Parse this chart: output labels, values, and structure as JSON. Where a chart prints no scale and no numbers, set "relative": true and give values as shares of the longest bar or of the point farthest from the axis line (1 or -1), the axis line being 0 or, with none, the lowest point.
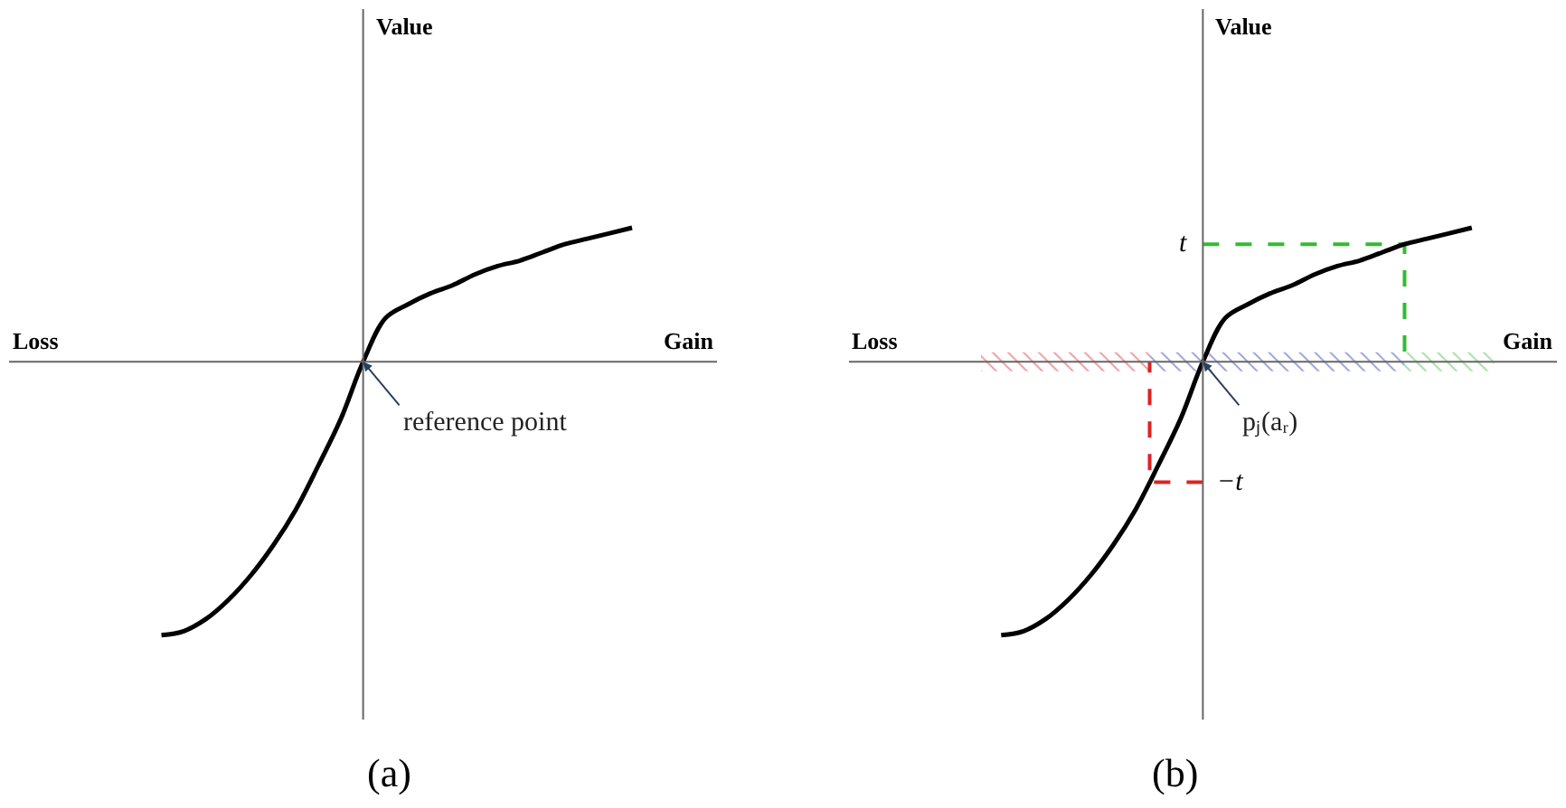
{
  "chart_data": [
    {
      "type": "line",
      "title": "(a)",
      "xlabel": "Gain",
      "ylabel": "Value",
      "relative": true,
      "annotations": [
        "Loss",
        "reference point"
      ],
      "categories": [
        null,
        null,
        null,
        null,
        null,
        null,
        null,
        null,
        null,
        null,
        null,
        null,
        null,
        null,
        null,
        null,
        null,
        null,
        null,
        null,
        null,
        null
      ],
      "series": [
        {
          "color": "#000000",
          "values": [
            -1,
            -0.985,
            -0.94,
            -0.87,
            -0.78,
            -0.67,
            -0.54,
            -0.38,
            -0.21,
            0,
            0.16,
            0.21,
            0.25,
            0.28,
            0.32,
            0.35,
            0.37,
            0.4,
            0.43,
            0.45,
            0.47,
            0.49
          ]
        }
      ]
    },
    {
      "type": "line",
      "title": "(b)",
      "xlabel": "Gain",
      "ylabel": "Value",
      "relative": true,
      "annotations": [
        "Loss",
        "pⱼ(aᵣ)"
      ],
      "categories": [
        null,
        null,
        null,
        null,
        null,
        null,
        null,
        null,
        null,
        null,
        null,
        null,
        null,
        null,
        null,
        null,
        null,
        null,
        null,
        null,
        null,
        null
      ],
      "series": [
        {
          "color": "#000000",
          "values": [
            -1,
            -0.985,
            -0.94,
            -0.87,
            -0.78,
            -0.67,
            -0.54,
            -0.38,
            -0.21,
            0,
            0.16,
            0.21,
            0.25,
            0.28,
            0.32,
            0.35,
            0.37,
            0.4,
            0.43,
            0.45,
            0.47,
            0.49
          ]
        }
      ],
      "ref_lines": [
        {
          "axis": "y",
          "value": 0.43,
          "label": "t",
          "color": "#33bb33",
          "line_style": "dashed"
        },
        {
          "axis": "y",
          "value": -0.44,
          "label": "−t",
          "color": "#dd2222",
          "line_style": "dashed"
        }
      ]
    }
  ]
}
